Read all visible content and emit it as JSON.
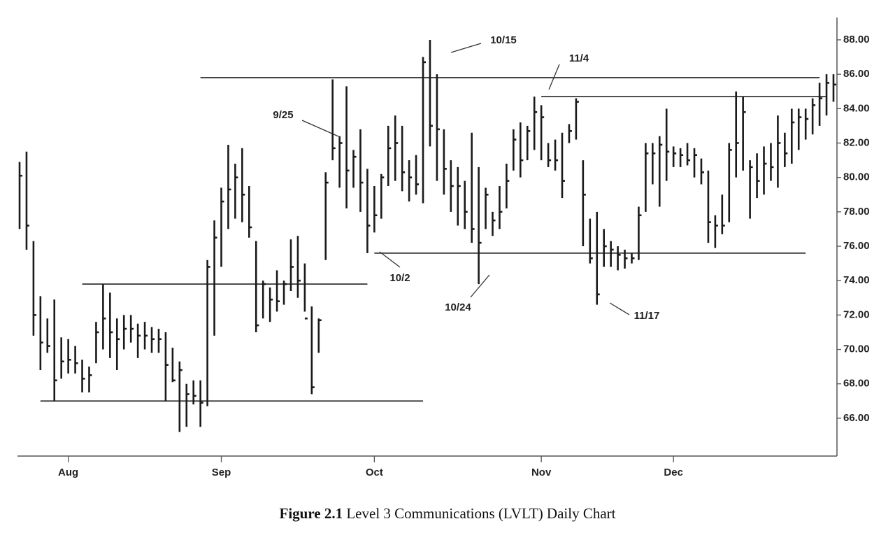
{
  "chart_data": {
    "type": "ohlc",
    "color": "#1a1a1a",
    "categories": [
      null,
      null,
      null,
      null,
      null,
      null,
      null,
      "Aug",
      null,
      null,
      null,
      null,
      null,
      null,
      null,
      null,
      null,
      null,
      null,
      null,
      null,
      null,
      null,
      null,
      null,
      null,
      null,
      null,
      null,
      "Sep",
      null,
      null,
      null,
      null,
      null,
      null,
      null,
      null,
      null,
      null,
      null,
      null,
      null,
      null,
      null,
      null,
      null,
      null,
      null,
      null,
      null,
      "Oct",
      null,
      null,
      null,
      null,
      null,
      null,
      null,
      null,
      null,
      null,
      null,
      null,
      null,
      null,
      null,
      null,
      null,
      null,
      null,
      null,
      null,
      null,
      null,
      "Nov",
      null,
      null,
      null,
      null,
      null,
      null,
      null,
      null,
      null,
      null,
      null,
      null,
      null,
      null,
      null,
      null,
      null,
      null,
      "Dec",
      null,
      null,
      null,
      null,
      null,
      null,
      null,
      null,
      null,
      null,
      null,
      null,
      null,
      null,
      null,
      null,
      null,
      null,
      null,
      null,
      null,
      null,
      null
    ],
    "series": [
      {
        "high": [
          80.9,
          81.5,
          76.3,
          73.1,
          71.8,
          72.9,
          70.7,
          70.6,
          70.2,
          69.4,
          69.0,
          71.6,
          73.8,
          73.3,
          71.8,
          72.0,
          72.0,
          71.5,
          71.6,
          71.3,
          71.2,
          71.0,
          70.1,
          69.3,
          68.0,
          68.2,
          68.2,
          75.2,
          77.5,
          79.4,
          81.9,
          80.8,
          81.7,
          79.5,
          76.3,
          74.0,
          73.6,
          74.6,
          74.0,
          76.4,
          76.6,
          75.0,
          72.5,
          71.8,
          80.3,
          85.7,
          82.4,
          85.3,
          81.6,
          82.8,
          80.5,
          79.5,
          80.2,
          83.0,
          83.6,
          83.0,
          81.0,
          81.3,
          87.0,
          88.0,
          86.0,
          82.8,
          81.0,
          80.6,
          79.8,
          82.6,
          80.6,
          79.4,
          78.0,
          79.5,
          80.8,
          82.8,
          83.2,
          83.0,
          84.7,
          84.2,
          82.0,
          82.2,
          82.6,
          83.1,
          84.6,
          81.0,
          77.6,
          78.0,
          77.0,
          76.3,
          76.0,
          75.8,
          75.6,
          78.3,
          82.0,
          82.0,
          82.4,
          84.0,
          81.8,
          81.7,
          82.0,
          81.7,
          81.1,
          80.4,
          77.8,
          79.0,
          82.0,
          85.0,
          84.7,
          81.0,
          81.4,
          81.8,
          82.0,
          83.6,
          82.6,
          84.0,
          84.0,
          84.0,
          84.6,
          85.5,
          86.0,
          86.0
        ],
        "low": [
          77.0,
          75.8,
          70.8,
          68.8,
          69.8,
          67.0,
          68.3,
          68.6,
          68.6,
          67.5,
          67.5,
          69.2,
          70.0,
          69.5,
          68.8,
          70.0,
          70.4,
          69.5,
          70.0,
          69.8,
          69.8,
          67.0,
          68.1,
          65.2,
          65.5,
          66.8,
          65.5,
          66.7,
          70.8,
          74.8,
          77.0,
          77.6,
          77.4,
          76.5,
          71.0,
          71.8,
          71.6,
          72.2,
          72.6,
          73.4,
          73.0,
          72.2,
          67.4,
          69.8,
          75.2,
          81.0,
          79.4,
          78.2,
          79.4,
          78.0,
          75.6,
          76.8,
          77.6,
          79.5,
          79.8,
          79.2,
          78.6,
          79.0,
          78.5,
          81.8,
          79.8,
          79.0,
          78.0,
          77.2,
          77.0,
          76.2,
          73.8,
          77.0,
          76.6,
          77.0,
          78.2,
          80.4,
          80.0,
          81.0,
          81.6,
          81.0,
          80.6,
          80.4,
          78.8,
          82.0,
          82.2,
          76.0,
          75.0,
          72.6,
          74.8,
          74.8,
          74.6,
          74.7,
          75.0,
          75.2,
          78.0,
          79.6,
          78.3,
          79.8,
          80.6,
          80.6,
          80.7,
          80.0,
          79.6,
          76.2,
          75.9,
          76.7,
          77.4,
          80.0,
          80.4,
          77.6,
          78.8,
          79.0,
          79.8,
          79.4,
          80.6,
          80.8,
          81.6,
          82.2,
          82.5,
          83.0,
          83.6,
          84.4
        ],
        "close": [
          80.1,
          77.2,
          72.0,
          70.4,
          70.2,
          68.2,
          69.3,
          69.4,
          69.2,
          68.3,
          68.5,
          71.0,
          71.8,
          71.0,
          70.6,
          71.2,
          71.2,
          70.8,
          70.8,
          70.6,
          70.6,
          69.1,
          68.2,
          68.8,
          67.4,
          67.3,
          66.9,
          74.8,
          76.5,
          78.6,
          79.3,
          80.0,
          79.0,
          77.1,
          71.4,
          73.8,
          72.9,
          72.8,
          73.8,
          74.8,
          74.0,
          71.8,
          67.8,
          71.7,
          79.7,
          81.7,
          82.0,
          80.4,
          81.2,
          79.7,
          77.2,
          77.8,
          80.0,
          81.7,
          82.0,
          80.3,
          80.0,
          79.6,
          86.7,
          83.0,
          82.8,
          80.5,
          79.5,
          79.5,
          78.0,
          77.0,
          76.2,
          79.0,
          77.5,
          78.0,
          79.8,
          82.2,
          81.0,
          82.7,
          83.8,
          83.5,
          81.0,
          81.0,
          79.8,
          82.7,
          84.4,
          79.0,
          75.3,
          73.2,
          76.0,
          75.8,
          75.5,
          75.3,
          75.3,
          77.8,
          81.4,
          81.4,
          81.9,
          81.5,
          81.4,
          81.3,
          81.0,
          81.3,
          80.3,
          77.4,
          77.2,
          77.2,
          81.6,
          82.0,
          83.8,
          80.6,
          79.8,
          80.8,
          80.6,
          82.0,
          81.4,
          83.2,
          83.5,
          83.4,
          84.2,
          84.6,
          85.5,
          85.4
        ]
      }
    ],
    "ylim": [
      63.8,
      89.3
    ],
    "yticks": [
      {
        "value": 66,
        "label": "66.00"
      },
      {
        "value": 68,
        "label": "68.00"
      },
      {
        "value": 70,
        "label": "70.00"
      },
      {
        "value": 72,
        "label": "72.00"
      },
      {
        "value": 74,
        "label": "74.00"
      },
      {
        "value": 76,
        "label": "76.00"
      },
      {
        "value": 78,
        "label": "78.00"
      },
      {
        "value": 80,
        "label": "80.00"
      },
      {
        "value": 82,
        "label": "82.00"
      },
      {
        "value": 84,
        "label": "84.00"
      },
      {
        "value": 86,
        "label": "86.00"
      },
      {
        "value": 88,
        "label": "88.00"
      }
    ],
    "levels": [
      {
        "value": 85.8,
        "start": 26,
        "end": 115
      },
      {
        "value": 84.7,
        "start": 75,
        "end": 116
      },
      {
        "value": 73.8,
        "start": 9,
        "end": 50
      },
      {
        "value": 67.0,
        "start": 3,
        "end": 58
      },
      {
        "value": 75.6,
        "start": 51,
        "end": 113
      }
    ],
    "annotations": [
      "10/15",
      "11/4",
      "9/25",
      "10/2",
      "10/24",
      "11/17"
    ]
  },
  "caption": {
    "label": "Figure 2.1",
    "text": "Level 3 Communications (LVLT) Daily Chart"
  }
}
